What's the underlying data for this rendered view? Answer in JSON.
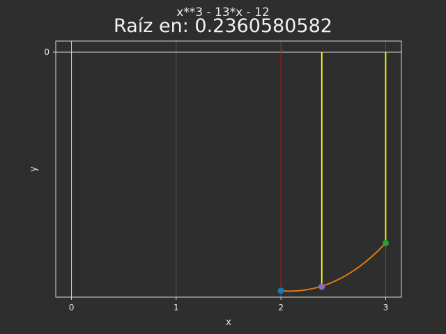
{
  "chart_data": {
    "type": "line",
    "title": "x**3 - 13*x - 12",
    "subtitle": "Raíz en: 0.2360580582",
    "xlabel": "x",
    "ylabel": "y",
    "xlim": [
      -0.15,
      3.15
    ],
    "ylim": [
      -30.8,
      1.4
    ],
    "x_ticks": [
      0,
      1,
      2,
      3
    ],
    "y_ticks": [
      0
    ],
    "grid": true,
    "colors": {
      "background": "#2e2e2e",
      "curve": "#e07a10",
      "bisection_line": "#a01818",
      "iteration_lines": "#ffff00",
      "point_a": "#1f77b4",
      "point_mid": "#9467bd",
      "point_b": "#2ca02c"
    },
    "curve": {
      "x_start": 2.0,
      "x_end": 3.0,
      "samples": 40
    },
    "vertical_lines": [
      {
        "x": 2.0,
        "color": "#a01818",
        "from": -30,
        "to": 0
      },
      {
        "x": 2.39,
        "color": "#ffff00",
        "from": -29.49,
        "to": 0
      },
      {
        "x": 3.0,
        "color": "#ffff00",
        "from": -24,
        "to": 0
      }
    ],
    "points": [
      {
        "x": 2.0,
        "y": -30,
        "color": "#1f77b4"
      },
      {
        "x": 2.39,
        "y": -29.49,
        "color": "#9467bd"
      },
      {
        "x": 3.0,
        "y": -24,
        "color": "#2ca02c"
      }
    ]
  }
}
